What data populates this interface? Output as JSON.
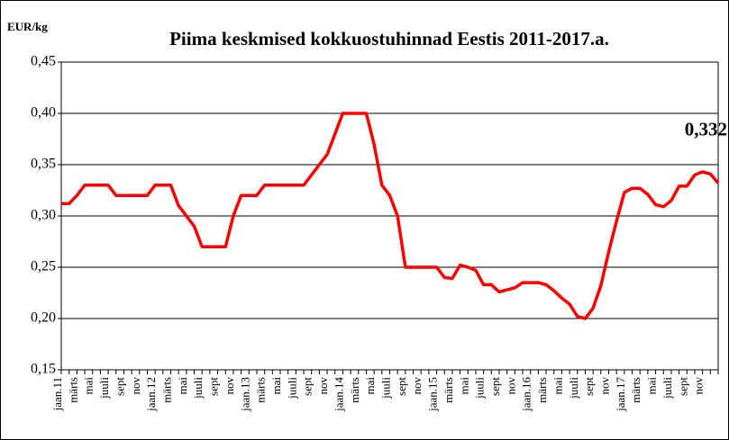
{
  "chart_data": {
    "type": "line",
    "title": "Piima keskmised kokkuostuhinnad Eestis 2011-2017.a.",
    "y_label": "EUR/kg",
    "categories": [
      "jaan.11",
      null,
      "märts",
      null,
      "mai",
      null,
      "juuli",
      null,
      "sept",
      null,
      "nov",
      null,
      "jaan.12",
      null,
      "märts",
      null,
      "mai",
      null,
      "juuli",
      null,
      "sept",
      null,
      "nov",
      null,
      "jaan.13",
      null,
      "märts",
      null,
      "mai",
      null,
      "juuli",
      null,
      "sept",
      null,
      "nov",
      null,
      "jaan.14",
      null,
      "märts",
      null,
      "mai",
      null,
      "juuli",
      null,
      "sept",
      null,
      "nov",
      null,
      "jaan.15",
      null,
      "märts",
      null,
      "mai",
      null,
      "juuli",
      null,
      "sept",
      null,
      "nov",
      null,
      "jaan.16",
      null,
      "märts",
      null,
      "mai",
      null,
      "juuli",
      null,
      "sept",
      null,
      "nov",
      null,
      "jaan.17",
      null,
      "märts",
      null,
      "mai",
      null,
      "juuli",
      null,
      "sept",
      null,
      "nov",
      null,
      null
    ],
    "values": [
      0.312,
      0.312,
      0.32,
      0.33,
      0.33,
      0.33,
      0.33,
      0.32,
      0.32,
      0.32,
      0.32,
      0.32,
      0.33,
      0.33,
      0.33,
      0.31,
      0.3,
      0.29,
      0.27,
      0.27,
      0.27,
      0.27,
      0.3,
      0.32,
      0.32,
      0.32,
      0.33,
      0.33,
      0.33,
      0.33,
      0.33,
      0.33,
      0.34,
      0.35,
      0.36,
      0.38,
      0.4,
      0.4,
      0.4,
      0.4,
      0.37,
      0.33,
      0.32,
      0.3,
      0.25,
      0.25,
      0.25,
      0.25,
      0.25,
      0.24,
      0.239,
      0.252,
      0.25,
      0.247,
      0.233,
      0.233,
      0.226,
      0.228,
      0.23,
      0.235,
      0.235,
      0.235,
      0.233,
      0.227,
      0.22,
      0.214,
      0.202,
      0.2,
      0.21,
      0.232,
      0.265,
      0.295,
      0.323,
      0.327,
      0.327,
      0.321,
      0.311,
      0.309,
      0.315,
      0.329,
      0.329,
      0.34,
      0.343,
      0.341,
      0.332
    ],
    "value_labels": [
      null,
      null,
      null,
      null,
      null,
      null,
      null,
      null,
      null,
      null,
      null,
      null,
      null,
      null,
      null,
      null,
      null,
      null,
      null,
      null,
      null,
      null,
      null,
      null,
      null,
      null,
      null,
      null,
      null,
      null,
      null,
      null,
      null,
      null,
      null,
      null,
      null,
      null,
      null,
      null,
      null,
      null,
      null,
      null,
      null,
      null,
      null,
      null,
      null,
      null,
      null,
      null,
      null,
      null,
      null,
      null,
      null,
      null,
      null,
      null,
      null,
      null,
      null,
      null,
      null,
      null,
      null,
      null,
      null,
      null,
      null,
      null,
      null,
      null,
      null,
      null,
      null,
      null,
      null,
      null,
      null,
      null,
      null,
      null,
      "0,332"
    ],
    "color": "#ff0000",
    "ylim": [
      0.15,
      0.45
    ],
    "yticks": [
      {
        "value": 0.15,
        "label": "0,15"
      },
      {
        "value": 0.2,
        "label": "0,20"
      },
      {
        "value": 0.25,
        "label": "0,25"
      },
      {
        "value": 0.3,
        "label": "0,30"
      },
      {
        "value": 0.35,
        "label": "0,35"
      },
      {
        "value": 0.4,
        "label": "0,40"
      },
      {
        "value": 0.45,
        "label": "0,45"
      }
    ],
    "grid": true
  }
}
